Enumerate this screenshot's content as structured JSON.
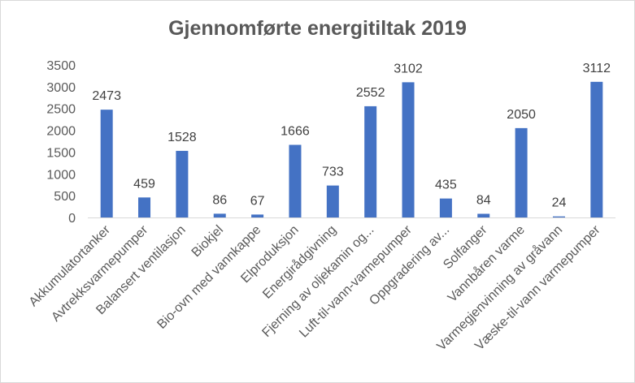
{
  "chart_data": {
    "type": "bar",
    "title": "Gjennomførte energitiltak 2019",
    "xlabel": "",
    "ylabel": "",
    "ylim": [
      0,
      3500
    ],
    "yticks": [
      "0",
      "500",
      "1000",
      "1500",
      "2000",
      "2500",
      "3000",
      "3500"
    ],
    "grid": false,
    "legend": "none",
    "bar_color": "#4472c4",
    "categories": [
      "Akkumulatortanker",
      "Avtrekksvarmepumper",
      "Balansert ventilasjon",
      "Biokjel",
      "Bio-ovn med vannkappe",
      "Elproduksjon",
      "Energirådgivning",
      "Fjerning av oljekamin og...",
      "Luft-til-vann-varmepumper",
      "Oppgradering av...",
      "Solfanger",
      "Vannbåren varme",
      "Varmegjenvinning av gråvann",
      "Væske-til-vann varmepumper"
    ],
    "values": [
      2473,
      459,
      1528,
      86,
      67,
      1666,
      733,
      2552,
      3102,
      435,
      84,
      2050,
      24,
      3112
    ]
  }
}
